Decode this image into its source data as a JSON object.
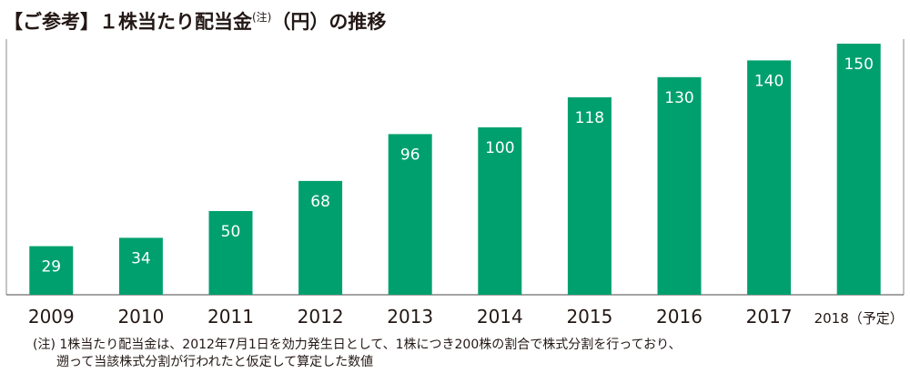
{
  "title": {
    "prefix": "【ご参考】",
    "main": "１株当たり配当金",
    "note_mark": "(注)",
    "unit": "（円）の推移"
  },
  "chart_data": {
    "type": "bar",
    "categories": [
      "2009",
      "2010",
      "2011",
      "2012",
      "2013",
      "2014",
      "2015",
      "2016",
      "2017",
      "2018（予定）"
    ],
    "values": [
      29,
      34,
      50,
      68,
      96,
      100,
      118,
      130,
      140,
      150
    ],
    "title": "【ご参考】１株当たり配当金(注)（円）の推移",
    "bar_color": "#00A06E",
    "label_color": "#ffffff",
    "ylim": [
      0,
      150
    ],
    "grid": false
  },
  "note": {
    "line1": "(注) 1株当たり配当金は、2012年7月1日を効力発生日として、1株につき200株の割合で株式分割を行っており、",
    "line2": "遡って当該株式分割が行われたと仮定して算定した数値"
  }
}
